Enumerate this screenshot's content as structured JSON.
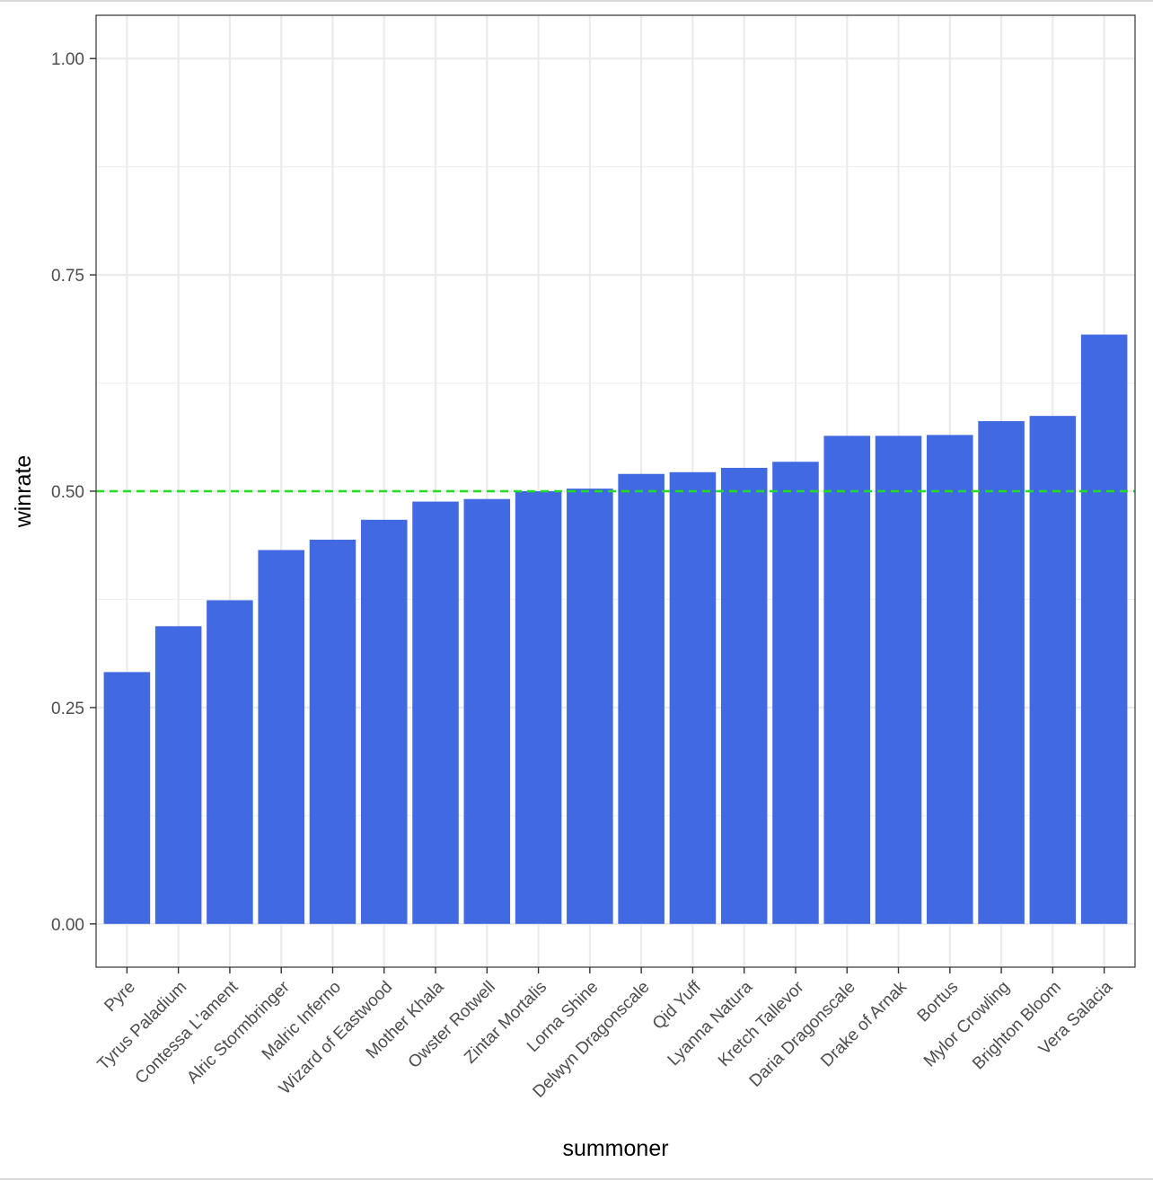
{
  "chart_data": {
    "type": "bar",
    "title": "",
    "xlabel": "summoner",
    "ylabel": "winrate",
    "ylim": [
      -0.05,
      1.05
    ],
    "yticks": [
      "0.00",
      "0.25",
      "0.50",
      "0.75",
      "1.00"
    ],
    "ytick_values": [
      0,
      0.25,
      0.5,
      0.75,
      1.0
    ],
    "grid": true,
    "legend": "none",
    "bar_color": "#4169E1",
    "reference_line": {
      "y": 0.5,
      "style": "dashed",
      "color": "#22DD22"
    },
    "categories": [
      "Pyre",
      "Tyrus Paladium",
      "Contessa L'ament",
      "Alric Stormbringer",
      "Malric Inferno",
      "Wizard of Eastwood",
      "Mother Khala",
      "Owster Rotwell",
      "Zintar Mortalis",
      "Lorna Shine",
      "Delwyn Dragonscale",
      "Qid Yuff",
      "Lyanna Natura",
      "Kretch Tallevor",
      "Daria Dragonscale",
      "Drake of Arnak",
      "Bortus",
      "Mylor Crowling",
      "Brighton Bloom",
      "Vera Salacia"
    ],
    "values": [
      0.291,
      0.344,
      0.374,
      0.432,
      0.444,
      0.467,
      0.488,
      0.491,
      0.5,
      0.503,
      0.52,
      0.522,
      0.527,
      0.534,
      0.564,
      0.564,
      0.565,
      0.581,
      0.587,
      0.681
    ]
  }
}
